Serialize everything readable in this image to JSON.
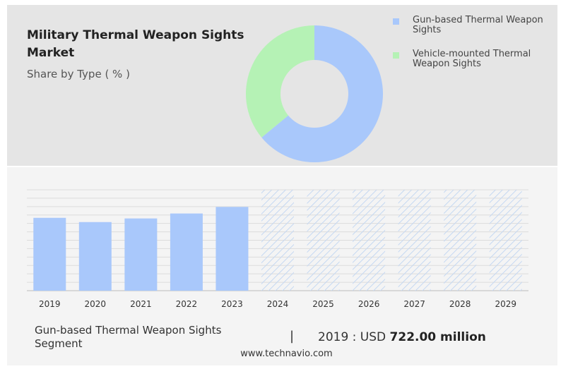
{
  "header": {
    "title": "Military Thermal Weapon Sights Market",
    "subtitle": "Share by Type ( % )"
  },
  "colors": {
    "gun_based": "#a9c8fb",
    "vehicle_mounted": "#b5f2b5",
    "hatch": "#c5d8f2"
  },
  "chart_data": [
    {
      "type": "pie",
      "style": "donut",
      "categories": [
        "Gun-based Thermal Weapon Sights",
        "Vehicle-mounted Thermal Weapon Sights"
      ],
      "values": [
        64,
        36
      ],
      "legend": [
        {
          "label": "Gun-based Thermal Weapon Sights",
          "color": "#a9c8fb"
        },
        {
          "label": "Vehicle-mounted Thermal Weapon Sights",
          "color": "#b5f2b5"
        }
      ],
      "legend_placement": "top-right"
    },
    {
      "type": "bar",
      "categories": [
        "2019",
        "2020",
        "2021",
        "2022",
        "2023",
        "2024",
        "2025",
        "2026",
        "2027",
        "2028",
        "2029"
      ],
      "values": [
        722,
        680,
        716,
        765,
        830,
        null,
        null,
        null,
        null,
        null,
        null
      ],
      "forecast_categories": [
        "2024",
        "2025",
        "2026",
        "2027",
        "2028",
        "2029"
      ],
      "ylim": [
        0,
        1000
      ],
      "grid": true,
      "xlabel": "",
      "ylabel": ""
    }
  ],
  "footer": {
    "segment": "Gun-based Thermal Weapon Sights Segment",
    "separator": "|",
    "value_prefix": "2019 : USD",
    "value": "722.00 million"
  },
  "source": "www.technavio.com"
}
